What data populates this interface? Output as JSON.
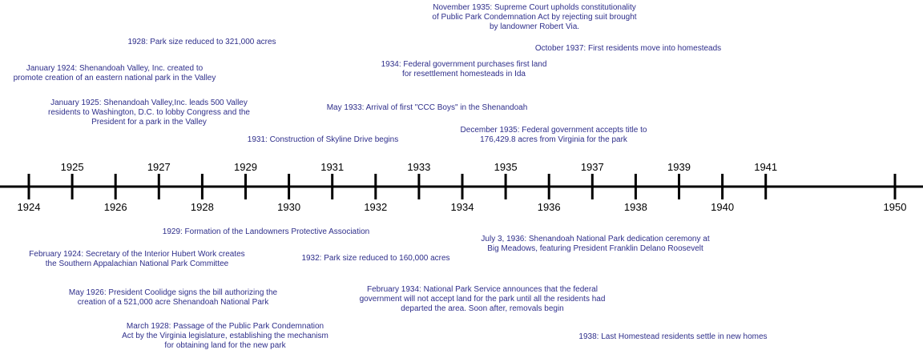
{
  "colors": {
    "axis": "#000000",
    "event_text": "#2e2e8a",
    "background": "#ffffff"
  },
  "axis": {
    "upper_year_labels": [
      "1925",
      "1927",
      "1929",
      "1931",
      "1933",
      "1935",
      "1937",
      "1939",
      "1941"
    ],
    "lower_year_labels": [
      "1924",
      "1926",
      "1928",
      "1930",
      "1932",
      "1934",
      "1936",
      "1938",
      "1940",
      "1950"
    ]
  },
  "events_above": [
    {
      "id": "nov-1935",
      "lines": [
        "November 1935: Supreme Court upholds constitutionality",
        "of Public Park Condemnation Act by rejecting suit brought",
        "by landowner Robert Via."
      ]
    },
    {
      "id": "1928-size",
      "lines": [
        "1928: Park size reduced to 321,000 acres"
      ]
    },
    {
      "id": "oct-1937",
      "lines": [
        "October 1937: First residents move into homesteads"
      ]
    },
    {
      "id": "1934-land",
      "lines": [
        "1934: Federal government purchases first land",
        "for resettlement homesteads in Ida"
      ]
    },
    {
      "id": "jan-1924",
      "lines": [
        "January 1924: Shenandoah Valley, Inc. created to",
        "promote creation of an eastern national park in the Valley"
      ]
    },
    {
      "id": "jan-1925",
      "lines": [
        "January 1925: Shenandoah Valley,Inc. leads 500 Valley",
        "residents to Washington, D.C. to lobby Congress and the",
        "President for a park in the Valley"
      ]
    },
    {
      "id": "may-1933",
      "lines": [
        "May 1933: Arrival of first \"CCC Boys\" in the Shenandoah"
      ]
    },
    {
      "id": "dec-1935",
      "lines": [
        "December 1935: Federal government accepts title to",
        "176,429.8 acres from Virginia for the park"
      ]
    },
    {
      "id": "1931-skyline",
      "lines": [
        "1931: Construction of Skyline Drive begins"
      ]
    }
  ],
  "events_below": [
    {
      "id": "1929-lpa",
      "lines": [
        "1929: Formation of the Landowners Protective Association"
      ]
    },
    {
      "id": "jul-1936",
      "lines": [
        "July 3, 1936: Shenandoah National Park dedication ceremony at",
        "Big Meadows, featuring President Franklin Delano Roosevelt"
      ]
    },
    {
      "id": "feb-1924",
      "lines": [
        "February 1924: Secretary of the Interior Hubert Work creates",
        "the Southern Appalachian National Park Committee"
      ]
    },
    {
      "id": "1932-size",
      "lines": [
        "1932: Park size reduced to 160,000 acres"
      ]
    },
    {
      "id": "may-1926",
      "lines": [
        "May 1926: President Coolidge signs the bill authorizing the",
        "creation of a 521,000 acre Shenandoah National Park"
      ]
    },
    {
      "id": "feb-1934",
      "lines": [
        "February 1934: National Park Service announces that the federal",
        "government will not accept land for the park until all the residents had",
        "departed the area.  Soon after, removals begin"
      ]
    },
    {
      "id": "mar-1928",
      "lines": [
        "March 1928: Passage of the Public Park Condemnation",
        "Act by the Virginia legislature, establishing the mechanism",
        "for obtaining land for the new park"
      ]
    },
    {
      "id": "1938-last",
      "lines": [
        "1938: Last Homestead residents settle in new homes"
      ]
    }
  ]
}
